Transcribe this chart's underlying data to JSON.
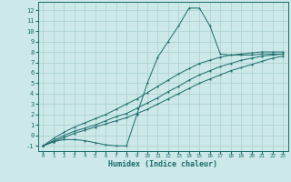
{
  "xlabel": "Humidex (Indice chaleur)",
  "bg_color": "#cce8e8",
  "grid_color": "#aacfcf",
  "line_color": "#1a6b6b",
  "xlim": [
    -0.5,
    23.5
  ],
  "ylim": [
    -1.5,
    12.8
  ],
  "xticks": [
    0,
    1,
    2,
    3,
    4,
    5,
    6,
    7,
    8,
    9,
    10,
    11,
    12,
    13,
    14,
    15,
    16,
    17,
    18,
    19,
    20,
    21,
    22,
    23
  ],
  "yticks": [
    -1,
    0,
    1,
    2,
    3,
    4,
    5,
    6,
    7,
    8,
    9,
    10,
    11,
    12
  ],
  "series1_x": [
    0,
    1,
    2,
    3,
    4,
    5,
    6,
    7,
    8,
    9,
    10,
    11,
    12,
    13,
    14,
    15,
    16,
    17,
    18,
    19,
    20,
    21,
    22,
    23
  ],
  "series1_y": [
    -1.0,
    -0.6,
    -0.4,
    -0.4,
    -0.5,
    -0.7,
    -0.9,
    -1.0,
    -1.0,
    2.0,
    5.0,
    7.5,
    9.0,
    10.5,
    12.2,
    12.2,
    10.5,
    7.8,
    7.7,
    7.7,
    7.7,
    7.8,
    7.8,
    7.8
  ],
  "series2_x": [
    0,
    1,
    2,
    3,
    4,
    5,
    6,
    7,
    8,
    9,
    10,
    11,
    12,
    13,
    14,
    15,
    16,
    17,
    18,
    19,
    20,
    21,
    22,
    23
  ],
  "series2_y": [
    -1.0,
    -0.6,
    -0.2,
    0.2,
    0.5,
    0.8,
    1.1,
    1.4,
    1.7,
    2.1,
    2.5,
    3.0,
    3.5,
    4.0,
    4.5,
    5.0,
    5.4,
    5.8,
    6.2,
    6.5,
    6.8,
    7.1,
    7.4,
    7.6
  ],
  "series3_x": [
    0,
    1,
    2,
    3,
    4,
    5,
    6,
    7,
    8,
    9,
    10,
    11,
    12,
    13,
    14,
    15,
    16,
    17,
    18,
    19,
    20,
    21,
    22,
    23
  ],
  "series3_y": [
    -1.0,
    -0.5,
    0.0,
    0.4,
    0.7,
    1.0,
    1.4,
    1.8,
    2.1,
    2.6,
    3.1,
    3.6,
    4.2,
    4.7,
    5.3,
    5.8,
    6.2,
    6.6,
    6.9,
    7.2,
    7.4,
    7.6,
    7.7,
    7.8
  ],
  "series4_x": [
    0,
    1,
    2,
    3,
    4,
    5,
    6,
    7,
    8,
    9,
    10,
    11,
    12,
    13,
    14,
    15,
    16,
    17,
    18,
    19,
    20,
    21,
    22,
    23
  ],
  "series4_y": [
    -1.0,
    -0.3,
    0.3,
    0.8,
    1.2,
    1.6,
    2.0,
    2.5,
    3.0,
    3.5,
    4.1,
    4.7,
    5.3,
    5.9,
    6.4,
    6.9,
    7.2,
    7.5,
    7.7,
    7.8,
    7.9,
    8.0,
    8.0,
    8.0
  ]
}
